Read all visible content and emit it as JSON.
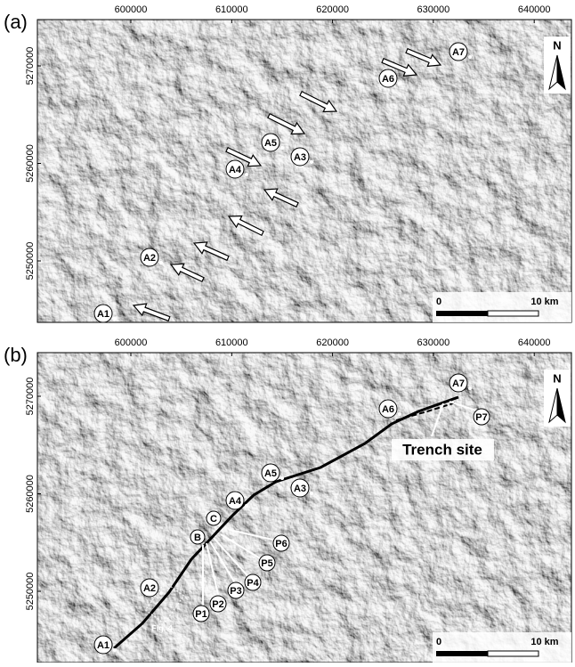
{
  "panels": [
    {
      "label": "(a)",
      "xticks": [
        600000,
        610000,
        620000,
        630000,
        640000
      ],
      "yticks": [
        5270000,
        5260000,
        5250000
      ],
      "sites": [
        "A1",
        "A2",
        "A3",
        "A4",
        "A5",
        "A6",
        "A7"
      ],
      "scale_bar": {
        "start": "0",
        "end": "10 km"
      },
      "north": "N"
    },
    {
      "label": "(b)",
      "xticks": [
        600000,
        610000,
        620000,
        630000,
        640000
      ],
      "yticks": [
        5270000,
        5260000,
        5250000
      ],
      "sites": [
        "A1",
        "A2",
        "A3",
        "A4",
        "A5",
        "A6",
        "A7"
      ],
      "points": [
        "B",
        "C",
        "P1",
        "P2",
        "P3",
        "P4",
        "P5",
        "P6",
        "P7"
      ],
      "annotations": [
        "Trench site",
        "Fig. 4"
      ],
      "scale_bar": {
        "start": "0",
        "end": "10 km"
      },
      "north": "N"
    }
  ]
}
